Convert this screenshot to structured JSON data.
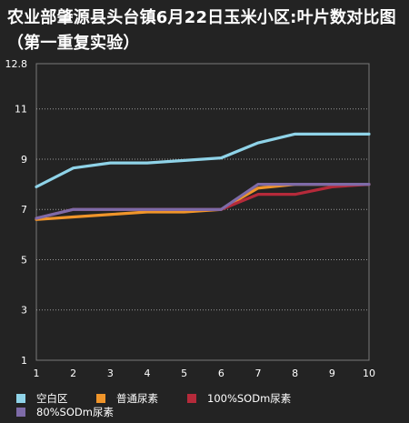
{
  "chart_data": {
    "type": "line",
    "title": "农业部肇源县头台镇6月22日玉米小区:叶片数对比图（第一重复实验）",
    "x": [
      1,
      2,
      3,
      4,
      5,
      6,
      7,
      8,
      9,
      10
    ],
    "ylim": [
      1,
      12.8
    ],
    "yticks": [
      "1",
      "3",
      "5",
      "7",
      "9",
      "11",
      "12.8"
    ],
    "xticks": [
      "1",
      "2",
      "3",
      "4",
      "5",
      "6",
      "7",
      "8",
      "9",
      "10"
    ],
    "grid": true,
    "legend_position": "bottom",
    "series": [
      {
        "name": "空白区",
        "color": "#8fd3e8",
        "values": [
          7.9,
          8.65,
          8.85,
          8.85,
          8.95,
          9.05,
          9.65,
          10.0,
          10.0,
          10.0
        ]
      },
      {
        "name": "普通尿素",
        "color": "#f0952a",
        "values": [
          6.6,
          6.7,
          6.8,
          6.9,
          6.9,
          7.0,
          7.85,
          8.0,
          8.0,
          8.0
        ]
      },
      {
        "name": "100%SODm尿素",
        "color": "#b52a3a",
        "values": [
          6.65,
          7.0,
          7.0,
          7.0,
          7.0,
          7.0,
          7.6,
          7.6,
          7.9,
          8.0
        ]
      },
      {
        "name": "80%SODm尿素",
        "color": "#7e6ba8",
        "values": [
          6.65,
          7.0,
          7.0,
          7.0,
          7.0,
          7.0,
          8.0,
          8.0,
          8.0,
          8.0
        ]
      }
    ]
  }
}
